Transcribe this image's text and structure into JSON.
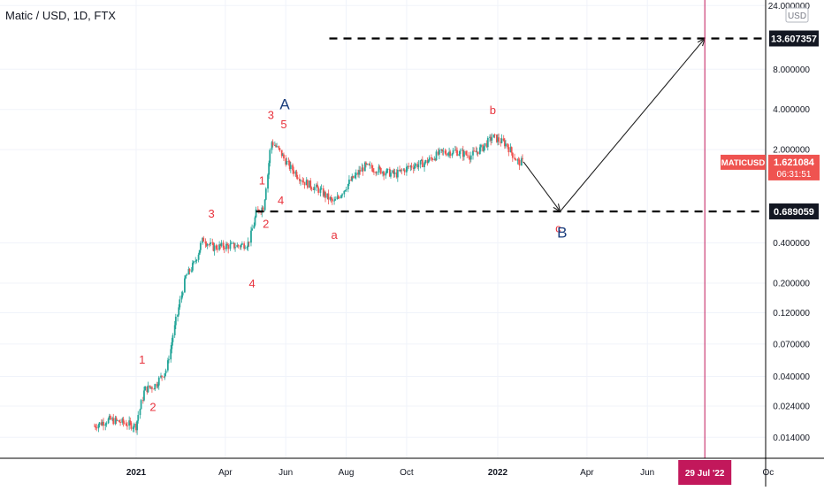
{
  "header": {
    "title": "Matic / USD, 1D, FTX"
  },
  "price_axis": {
    "currency": "USD",
    "ticks": [
      "24.000000",
      "8.000000",
      "4.000000",
      "2.000000",
      "0.400000",
      "0.200000",
      "0.120000",
      "0.070000",
      "0.040000",
      "0.024000",
      "0.014000"
    ],
    "tick_values": [
      24,
      8,
      4,
      2,
      0.4,
      0.2,
      0.12,
      0.07,
      0.04,
      0.024,
      0.014
    ],
    "target_label": "13.607357",
    "support_label": "0.689059",
    "ticker_label": "MATICUSD",
    "last_price": "1.621084",
    "countdown": "06:31:51"
  },
  "time_axis": {
    "labels": [
      "2021",
      "Apr",
      "Jun",
      "Aug",
      "Oct",
      "2022",
      "Apr",
      "Jun",
      "Oc"
    ],
    "highlight_label": "29 Jul '22"
  },
  "chart_data": {
    "type": "line",
    "title": "Matic / USD, 1D, FTX",
    "yscale": "log",
    "ylim": [
      0.011,
      30
    ],
    "x": [
      "2020-11-20",
      "2020-12-05",
      "2020-12-20",
      "2021-01-01",
      "2021-01-10",
      "2021-01-20",
      "2021-02-01",
      "2021-02-10",
      "2021-02-20",
      "2021-03-01",
      "2021-03-10",
      "2021-03-20",
      "2021-04-01",
      "2021-04-15",
      "2021-04-25",
      "2021-05-03",
      "2021-05-10",
      "2021-05-18",
      "2021-05-25",
      "2021-06-05",
      "2021-06-20",
      "2021-07-05",
      "2021-07-20",
      "2021-08-05",
      "2021-08-20",
      "2021-09-05",
      "2021-09-20",
      "2021-10-05",
      "2021-10-20",
      "2021-11-05",
      "2021-11-20",
      "2021-12-05",
      "2021-12-18",
      "2021-12-27",
      "2022-01-10",
      "2022-01-22",
      "2022-01-27"
    ],
    "values": [
      0.017,
      0.019,
      0.018,
      0.017,
      0.032,
      0.034,
      0.045,
      0.1,
      0.22,
      0.28,
      0.43,
      0.37,
      0.38,
      0.38,
      0.4,
      0.68,
      0.75,
      2.3,
      2.0,
      1.5,
      1.15,
      1.0,
      0.8,
      1.15,
      1.5,
      1.4,
      1.3,
      1.5,
      1.6,
      1.9,
      1.95,
      1.8,
      2.1,
      2.5,
      2.2,
      1.6,
      1.62
    ],
    "projection": {
      "x": [
        "2022-01-27",
        "2022-03-05",
        "2022-07-29"
      ],
      "values": [
        1.62,
        0.689059,
        13.607357
      ]
    },
    "levels": [
      {
        "label": "13.607357",
        "value": 13.607357,
        "from": "2021-07-15"
      },
      {
        "label": "0.689059",
        "value": 0.689059,
        "from": "2021-05-02"
      }
    ],
    "marker_date": "2022-07-29",
    "wave_labels": [
      {
        "text": "1",
        "x": "2021-01-07",
        "y": 0.05,
        "color": "#e8323c"
      },
      {
        "text": "2",
        "x": "2021-01-18",
        "y": 0.022,
        "color": "#e8323c"
      },
      {
        "text": "3",
        "x": "2021-03-18",
        "y": 0.62,
        "color": "#e8323c"
      },
      {
        "text": "4",
        "x": "2021-04-28",
        "y": 0.185,
        "color": "#e8323c"
      },
      {
        "text": "1",
        "x": "2021-05-08",
        "y": 1.1,
        "color": "#e8323c"
      },
      {
        "text": "2",
        "x": "2021-05-12",
        "y": 0.52,
        "color": "#e8323c"
      },
      {
        "text": "3",
        "x": "2021-05-17",
        "y": 3.4,
        "color": "#e8323c"
      },
      {
        "text": "4",
        "x": "2021-05-27",
        "y": 0.78,
        "color": "#e8323c"
      },
      {
        "text": "5",
        "x": "2021-05-30",
        "y": 2.9,
        "color": "#e8323c"
      },
      {
        "text": "A",
        "x": "2021-05-31",
        "y": 4.0,
        "color": "#1a3d7c"
      },
      {
        "text": "a",
        "x": "2021-07-20",
        "y": 0.43,
        "color": "#e8323c"
      },
      {
        "text": "b",
        "x": "2021-12-27",
        "y": 3.7,
        "color": "#e8323c"
      },
      {
        "text": "c",
        "x": "2022-03-03",
        "y": 0.48,
        "color": "#e8323c"
      },
      {
        "text": "B",
        "x": "2022-03-07",
        "y": 0.44,
        "color": "#1a3d7c"
      }
    ]
  },
  "colors": {
    "up": "#26a69a",
    "down": "#ef5350",
    "wave": "#e8323c",
    "wave_major": "#1a3d7c",
    "marker": "#c2185b",
    "ticker_bg": "#ef5350",
    "grid": "#f0f3fa",
    "axis_text": "#131722"
  }
}
